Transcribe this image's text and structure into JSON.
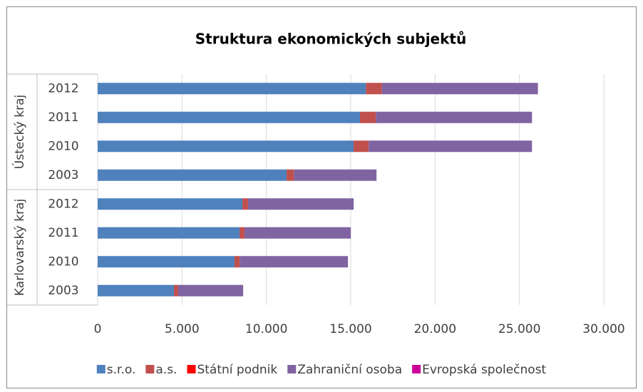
{
  "chart_data": {
    "type": "stacked-barh",
    "title": "Struktura ekonomických subjektů",
    "groups": [
      {
        "name": "Ústecký kraj",
        "categories": [
          "2012",
          "2011",
          "2010",
          "2003"
        ]
      },
      {
        "name": "Karlovarský kraj",
        "categories": [
          "2012",
          "2011",
          "2010",
          "2003"
        ]
      }
    ],
    "series": [
      {
        "name": "s.r.o.",
        "color": "#4f81bd",
        "values": [
          15900,
          15550,
          15170,
          11200,
          8580,
          8410,
          8110,
          4520
        ]
      },
      {
        "name": "a.s.",
        "color": "#c0504d",
        "values": [
          930,
          930,
          880,
          420,
          330,
          290,
          300,
          250
        ]
      },
      {
        "name": "Státní podnik",
        "color": "#ff0000",
        "values": [
          10,
          10,
          10,
          10,
          5,
          5,
          5,
          5
        ]
      },
      {
        "name": "Zahraniční osoba",
        "color": "#8064a2",
        "values": [
          9250,
          9250,
          9680,
          4900,
          6260,
          6300,
          6420,
          3850
        ]
      },
      {
        "name": "Evropská společnost",
        "color": "#cc0099",
        "values": [
          5,
          5,
          5,
          0,
          0,
          0,
          0,
          0
        ]
      }
    ],
    "xlim": [
      0,
      30000
    ],
    "xticks": [
      0,
      {
        "value": 5000,
        "label": "5.000"
      },
      {
        "value": 10000,
        "label": "10.000"
      },
      {
        "value": 15000,
        "label": "15.000"
      },
      {
        "value": 20000,
        "label": "20.000"
      },
      {
        "value": 25000,
        "label": "25.000"
      },
      {
        "value": 30000,
        "label": "30.000"
      }
    ],
    "grid": true,
    "legend": "bottom"
  }
}
